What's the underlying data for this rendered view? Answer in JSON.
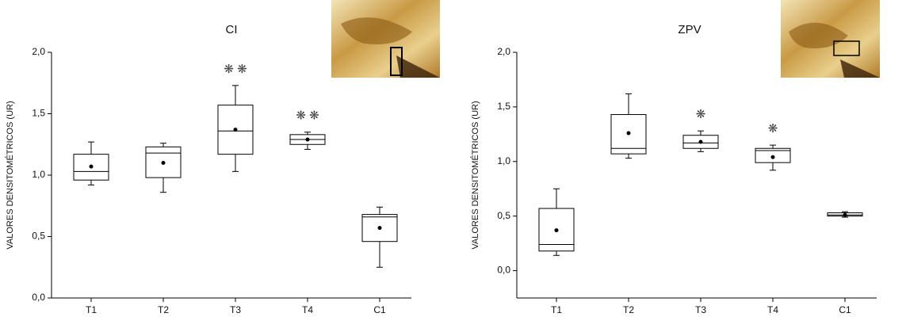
{
  "chart_data": [
    {
      "type": "box",
      "title": "CI",
      "ylabel": "VALORES DENSITOMÉTRICOS (UR)",
      "categories": [
        "T1",
        "T2",
        "T3",
        "T4",
        "C1"
      ],
      "boxes": [
        {
          "low": 0.92,
          "q1": 0.96,
          "median": 1.03,
          "q3": 1.17,
          "high": 1.27,
          "mean": 1.07
        },
        {
          "low": 0.86,
          "q1": 0.98,
          "median": 1.18,
          "q3": 1.23,
          "high": 1.26,
          "mean": 1.1
        },
        {
          "low": 1.03,
          "q1": 1.17,
          "median": 1.36,
          "q3": 1.57,
          "high": 1.73,
          "mean": 1.37
        },
        {
          "low": 1.21,
          "q1": 1.25,
          "median": 1.29,
          "q3": 1.33,
          "high": 1.35,
          "mean": 1.29
        },
        {
          "low": 0.25,
          "q1": 0.46,
          "median": 0.66,
          "q3": 0.68,
          "high": 0.74,
          "mean": 0.57
        }
      ],
      "annotations": [
        null,
        null,
        "❋ ❋",
        "❋ ❋",
        null
      ],
      "ylim": [
        0,
        2
      ],
      "yticks": [
        {
          "value": 0,
          "label": "0,0"
        },
        {
          "value": 0.5,
          "label": "0,5"
        },
        {
          "value": 1,
          "label": "1,0"
        },
        {
          "value": 1.5,
          "label": "1,5"
        },
        {
          "value": 2,
          "label": "2,0"
        }
      ]
    },
    {
      "type": "box",
      "title": "ZPV",
      "ylabel": "VALORES DENSITOMÉTRICOS (UR)",
      "categories": [
        "T1",
        "T2",
        "T3",
        "T4",
        "C1"
      ],
      "boxes": [
        {
          "low": 0.14,
          "q1": 0.18,
          "median": 0.24,
          "q3": 0.57,
          "high": 0.75,
          "mean": 0.37
        },
        {
          "low": 1.03,
          "q1": 1.07,
          "median": 1.12,
          "q3": 1.43,
          "high": 1.62,
          "mean": 1.26
        },
        {
          "low": 1.09,
          "q1": 1.12,
          "median": 1.17,
          "q3": 1.24,
          "high": 1.28,
          "mean": 1.18
        },
        {
          "low": 0.92,
          "q1": 0.99,
          "median": 1.1,
          "q3": 1.12,
          "high": 1.15,
          "mean": 1.04
        },
        {
          "low": 0.49,
          "q1": 0.5,
          "median": 0.51,
          "q3": 0.53,
          "high": 0.54,
          "mean": 0.51
        }
      ],
      "annotations": [
        null,
        null,
        "❋",
        "❋",
        null
      ],
      "ylim": [
        -0.25,
        2
      ],
      "yticks": [
        {
          "value": 0,
          "label": "0,0"
        },
        {
          "value": 0.5,
          "label": "0,5"
        },
        {
          "value": 1,
          "label": "1,0"
        },
        {
          "value": 1.5,
          "label": "1,5"
        },
        {
          "value": 2,
          "label": "2,0"
        }
      ]
    }
  ]
}
